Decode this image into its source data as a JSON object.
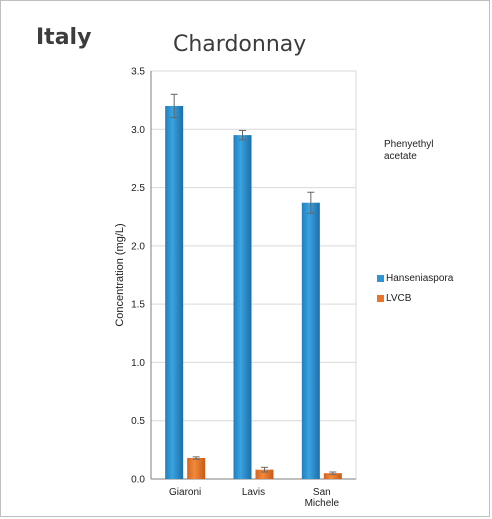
{
  "header": {
    "country": "Italy",
    "varietal": "Chardonnay"
  },
  "annotation": "Phenyethyl\nacetate",
  "colors": {
    "hanseniaspora": "#2f95d4",
    "lvcb": "#e8752a",
    "error_bar": "#666666",
    "grid": "#d9d9d9"
  },
  "chart_data": {
    "type": "bar",
    "ylabel": "Concentration (mg/L)",
    "ylim": [
      0,
      3.5
    ],
    "yticks": [
      "0.0",
      "0.5",
      "1.0",
      "1.5",
      "2.0",
      "2.5",
      "3.0",
      "3.5"
    ],
    "categories": [
      "Giaroni",
      "Lavis",
      "San\nMichele"
    ],
    "series": [
      {
        "name": "Hanseniaspora",
        "values": [
          3.2,
          2.95,
          2.37
        ],
        "errors": [
          0.1,
          0.04,
          0.09
        ]
      },
      {
        "name": "LVCB",
        "values": [
          0.18,
          0.08,
          0.05
        ],
        "errors": [
          0.01,
          0.02,
          0.01
        ]
      }
    ],
    "grid": true,
    "legend_position": "right"
  }
}
